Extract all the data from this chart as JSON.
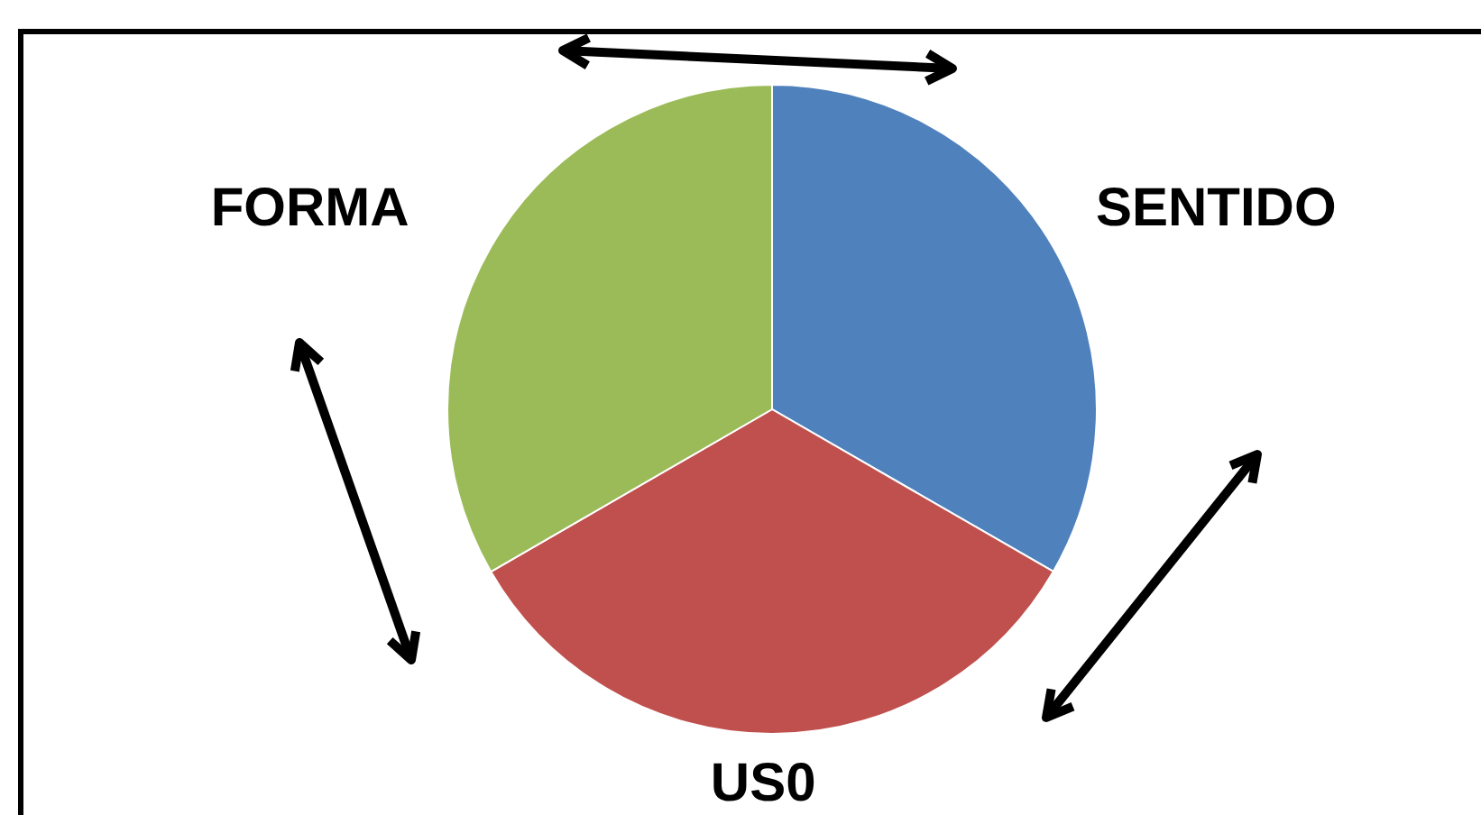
{
  "chart_data": {
    "type": "pie",
    "categories": [
      "SENTIDO",
      "US0",
      "FORMA"
    ],
    "values": [
      33.33,
      33.33,
      33.34
    ],
    "colors": [
      "#4f81bd",
      "#c0504d",
      "#9bbb59"
    ]
  }
}
